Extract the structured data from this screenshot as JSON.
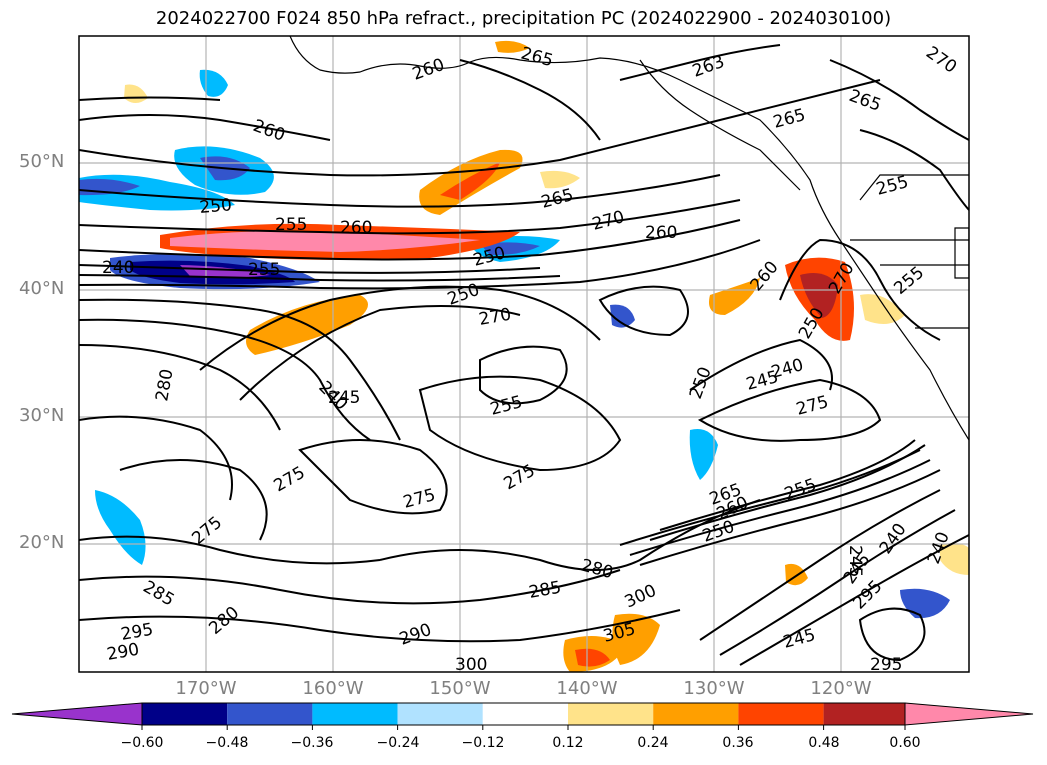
{
  "title": "2024022700 F024 850 hPa refract., precipitation PC (2024022900 - 2024030100)",
  "map": {
    "lat_labels": [
      "50°N",
      "40°N",
      "30°N",
      "20°N"
    ],
    "lon_labels": [
      "170°W",
      "160°W",
      "150°W",
      "140°W",
      "130°W",
      "120°W"
    ],
    "lat_ticks": [
      50,
      40,
      30,
      20
    ],
    "lon_ticks": [
      -170,
      -160,
      -150,
      -140,
      -130,
      -120
    ],
    "extent": {
      "lon": [
        -180,
        -110
      ],
      "lat": [
        10,
        60
      ]
    },
    "contour_labels": [
      "260",
      "265",
      "263",
      "270",
      "265",
      "265",
      "255",
      "260",
      "250",
      "255",
      "260",
      "265",
      "270",
      "260",
      "240",
      "255",
      "250",
      "260",
      "250",
      "255",
      "270",
      "280",
      "240",
      "245",
      "255",
      "250",
      "245",
      "240",
      "275",
      "275",
      "275",
      "275",
      "275",
      "265",
      "260",
      "255",
      "250",
      "245",
      "240",
      "245",
      "240",
      "280",
      "285",
      "290",
      "295",
      "300",
      "305",
      "300",
      "295",
      "290",
      "280",
      "285",
      "295",
      "245",
      "270",
      "250"
    ]
  },
  "colorbar": {
    "ticks": [
      "−0.60",
      "−0.48",
      "−0.36",
      "−0.24",
      "−0.12",
      "0.12",
      "0.24",
      "0.36",
      "0.48",
      "0.60"
    ],
    "colors": [
      "#9933cc",
      "#000088",
      "#3355cc",
      "#00bbff",
      "#b0e2ff",
      "#ffffff",
      "#ffe38a",
      "#ff9f00",
      "#ff4400",
      "#b22222",
      "#ff88aa"
    ]
  }
}
